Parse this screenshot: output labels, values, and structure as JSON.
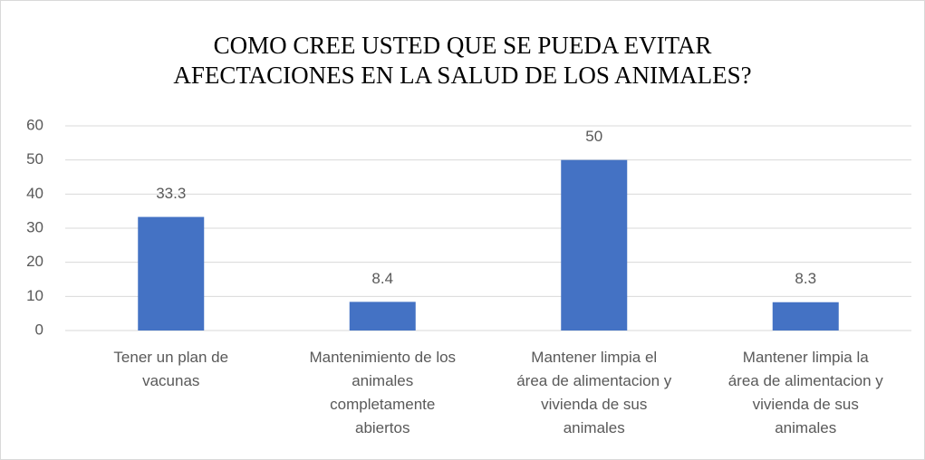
{
  "chart_data": {
    "type": "bar",
    "title": "COMO CREE USTED QUE SE PUEDA EVITAR\nAFECTACIONES EN LA SALUD DE LOS ANIMALES?",
    "categories": [
      "Tener un plan de\nvacunas",
      "Mantenimiento de los\nanimales\ncompletamente\nabiertos",
      "Mantener limpia el\nárea de alimentacion y\nvivienda de sus\nanimales",
      "Mantener limpia la\nárea de alimentacion y\nvivienda de sus\nanimales"
    ],
    "values": [
      33.3,
      8.4,
      50,
      8.3
    ],
    "color": "#4472c4",
    "ylim": [
      0,
      60
    ],
    "yticks": [
      0,
      10,
      20,
      30,
      40,
      50,
      60
    ],
    "grid": true
  }
}
